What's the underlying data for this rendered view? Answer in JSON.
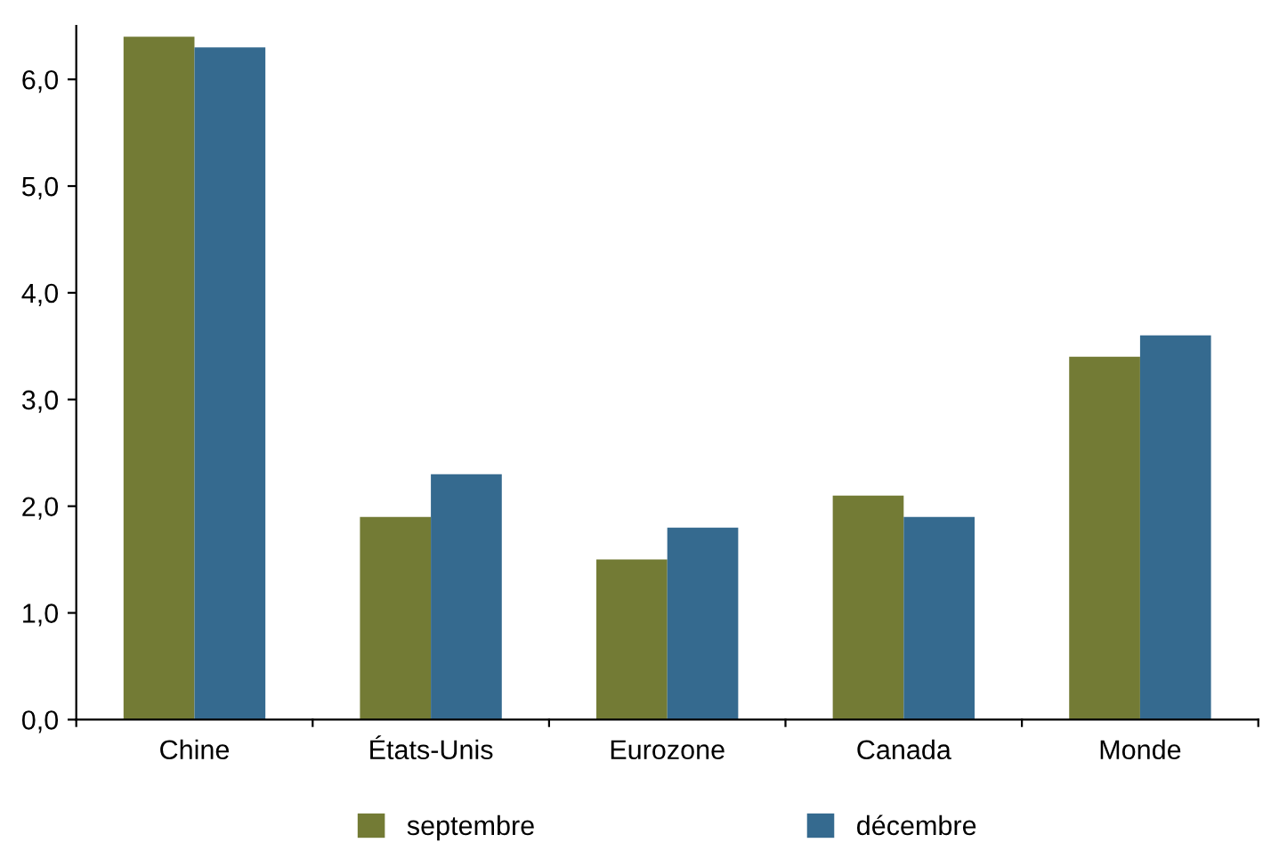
{
  "chart_data": {
    "type": "bar",
    "categories": [
      "Chine",
      "États-Unis",
      "Eurozone",
      "Canada",
      "Monde"
    ],
    "series": [
      {
        "name": "septembre",
        "color": "#737b35",
        "values": [
          6.4,
          1.9,
          1.5,
          2.1,
          3.4
        ]
      },
      {
        "name": "décembre",
        "color": "#356a8f",
        "values": [
          6.3,
          2.3,
          1.8,
          1.9,
          3.6
        ]
      }
    ],
    "ylim": [
      0,
      6.5
    ],
    "yticks": [
      {
        "value": 0,
        "label": "0,0"
      },
      {
        "value": 1,
        "label": "1,0"
      },
      {
        "value": 2,
        "label": "2,0"
      },
      {
        "value": 3,
        "label": "3,0"
      },
      {
        "value": 4,
        "label": "4,0"
      },
      {
        "value": 5,
        "label": "5,0"
      },
      {
        "value": 6,
        "label": "6,0"
      }
    ],
    "grid": false,
    "legend": "bottom"
  }
}
